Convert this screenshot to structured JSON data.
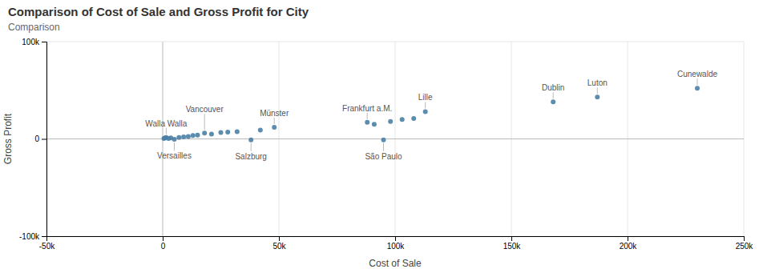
{
  "chart_data": {
    "type": "scatter",
    "title": "Comparison of Cost of Sale and Gross Profit for City",
    "subtitle": "Comparison",
    "xlabel": "Cost of Sale",
    "ylabel": "Gross Profit",
    "color": "#4a7fa5",
    "grid": true,
    "xlim": [
      -50000,
      250000
    ],
    "ylim": [
      -100000,
      100000
    ],
    "xticks": [
      {
        "value": -50000,
        "label": "-50k"
      },
      0,
      {
        "value": 50000,
        "label": "50k"
      },
      {
        "value": 100000,
        "label": "100k"
      },
      {
        "value": 150000,
        "label": "150k"
      },
      {
        "value": 200000,
        "label": "200k"
      },
      {
        "value": 250000,
        "label": "250k"
      }
    ],
    "yticks": [
      {
        "value": -100000,
        "label": "-100k"
      },
      0,
      {
        "value": 100000,
        "label": "100k"
      }
    ],
    "x": [
      500,
      1000,
      1500,
      2500,
      3500,
      5000,
      7000,
      9000,
      11000,
      13000,
      15000,
      18000,
      21000,
      25000,
      28000,
      32000,
      38000,
      42000,
      48000,
      88000,
      91000,
      95000,
      98000,
      103000,
      108000,
      113000,
      168000,
      187000,
      230000
    ],
    "values": [
      500,
      1000,
      1500,
      500,
      1000,
      -500,
      1500,
      2000,
      2500,
      3500,
      4000,
      6000,
      5000,
      6500,
      7000,
      7500,
      -1000,
      9000,
      12000,
      17000,
      15000,
      -1000,
      18000,
      20000,
      21000,
      28000,
      38000,
      43000,
      52000
    ],
    "annotations": [
      {
        "text": "Walla Walla",
        "x": 1500,
        "y": 1500
      },
      {
        "text": "Versailles",
        "x": 5000,
        "y": -500
      },
      {
        "text": "Vancouver",
        "x": 18000,
        "y": 6000
      },
      {
        "text": "Salzburg",
        "x": 38000,
        "y": -1000
      },
      {
        "text": "Münster",
        "x": 48000,
        "y": 12000
      },
      {
        "text": "Frankfurt a.M.",
        "x": 88000,
        "y": 17000
      },
      {
        "text": "São Paulo",
        "x": 95000,
        "y": -1000
      },
      {
        "text": "Lille",
        "x": 113000,
        "y": 28000
      },
      {
        "text": "Dublin",
        "x": 168000,
        "y": 38000
      },
      {
        "text": "Luton",
        "x": 187000,
        "y": 43000
      },
      {
        "text": "Cunewalde",
        "x": 230000,
        "y": 52000
      }
    ]
  }
}
